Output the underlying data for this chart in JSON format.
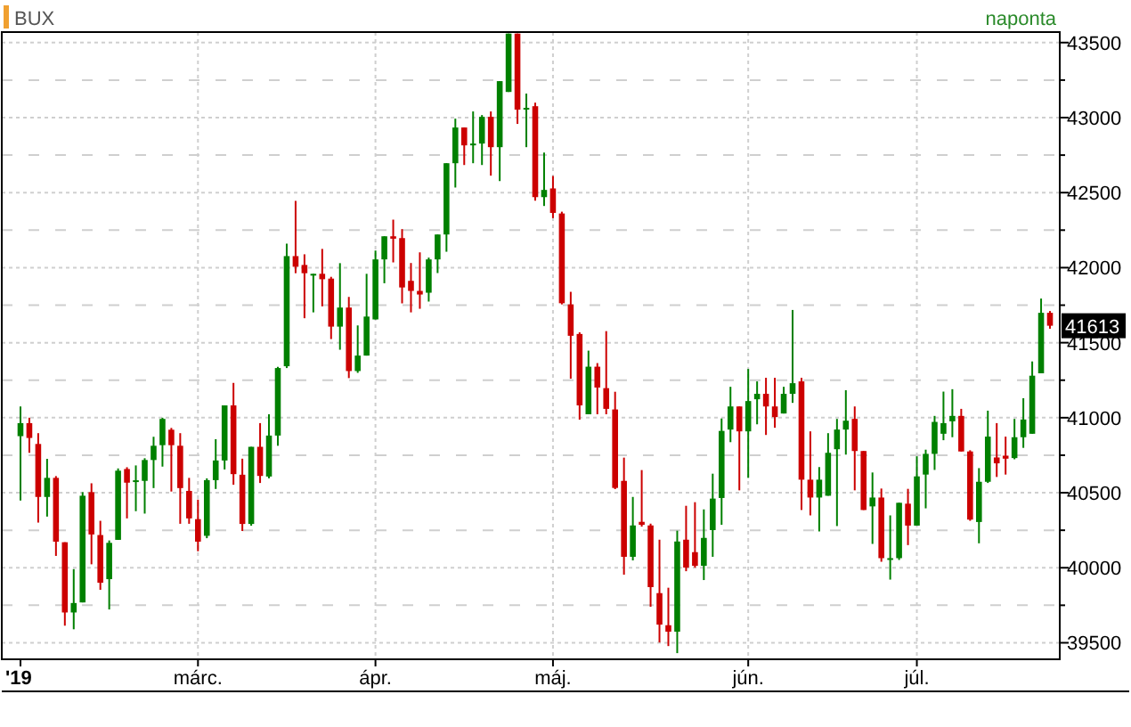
{
  "chart_data": {
    "type": "candlestick",
    "title": "BUX",
    "subtitle": "naponta",
    "categories": [
      "'19",
      null,
      null,
      null,
      null,
      null,
      null,
      null,
      null,
      null,
      null,
      null,
      null,
      null,
      null,
      null,
      null,
      null,
      null,
      null,
      "márc.",
      null,
      null,
      null,
      null,
      null,
      null,
      null,
      null,
      null,
      null,
      null,
      null,
      null,
      null,
      null,
      null,
      null,
      null,
      null,
      "ápr.",
      null,
      null,
      null,
      null,
      null,
      null,
      null,
      null,
      null,
      null,
      null,
      null,
      null,
      null,
      null,
      null,
      null,
      null,
      null,
      "máj.",
      null,
      null,
      null,
      null,
      null,
      null,
      null,
      null,
      null,
      null,
      null,
      null,
      null,
      null,
      null,
      null,
      null,
      null,
      null,
      null,
      null,
      "jún.",
      null,
      null,
      null,
      null,
      null,
      null,
      null,
      null,
      null,
      null,
      null,
      null,
      null,
      null,
      null,
      null,
      null,
      null,
      "júl.",
      null,
      null,
      null,
      null,
      null,
      null,
      null,
      null,
      null,
      null,
      null,
      null,
      null,
      null,
      null
    ],
    "ohlc": [
      [
        40877,
        41075,
        40448,
        40964
      ],
      [
        40964,
        41000,
        40766,
        40865
      ],
      [
        40825,
        40897,
        40301,
        40472
      ],
      [
        40472,
        40726,
        40341,
        40599
      ],
      [
        40599,
        40611,
        40079,
        40174
      ],
      [
        40170,
        40170,
        39614,
        39702
      ],
      [
        39702,
        39991,
        39590,
        39765
      ],
      [
        39769,
        40504,
        39769,
        40480
      ],
      [
        40504,
        40563,
        40023,
        40222
      ],
      [
        40218,
        40313,
        39853,
        39900
      ],
      [
        39924,
        40182,
        39722,
        40166
      ],
      [
        40186,
        40662,
        40186,
        40647
      ],
      [
        40658,
        40670,
        40329,
        40567
      ],
      [
        40575,
        40682,
        40377,
        40583
      ],
      [
        40579,
        40730,
        40361,
        40718
      ],
      [
        40718,
        40873,
        40531,
        40813
      ],
      [
        40817,
        41000,
        40674,
        40992
      ],
      [
        40920,
        40932,
        40508,
        40817
      ],
      [
        40813,
        40897,
        40293,
        40531
      ],
      [
        40512,
        40599,
        40293,
        40329
      ],
      [
        40324,
        40454,
        40110,
        40174
      ],
      [
        40213,
        40596,
        40197,
        40584
      ],
      [
        40584,
        40857,
        40525,
        40715
      ],
      [
        40715,
        41082,
        40655,
        41082
      ],
      [
        41082,
        41232,
        40553,
        40624
      ],
      [
        40620,
        40727,
        40245,
        40292
      ],
      [
        40292,
        40806,
        40280,
        40806
      ],
      [
        40806,
        40964,
        40565,
        40612
      ],
      [
        40608,
        41023,
        40596,
        40881
      ],
      [
        40881,
        41339,
        40813,
        41331
      ],
      [
        41343,
        42160,
        41331,
        42077
      ],
      [
        42077,
        42445,
        41963,
        42006
      ],
      [
        42018,
        42089,
        41663,
        41963
      ],
      [
        41951,
        41959,
        41702,
        41959
      ],
      [
        41959,
        42125,
        41742,
        41923
      ],
      [
        41927,
        41939,
        41524,
        41607
      ],
      [
        41607,
        42030,
        41453,
        41734
      ],
      [
        41734,
        41805,
        41264,
        41311
      ],
      [
        41311,
        41615,
        41299,
        41414
      ],
      [
        41414,
        41959,
        41414,
        41674
      ],
      [
        41655,
        42114,
        41655,
        42055
      ],
      [
        42055,
        42209,
        41896,
        42209
      ],
      [
        42209,
        42320,
        42035,
        42193
      ],
      [
        42197,
        42257,
        41762,
        41868
      ],
      [
        41912,
        42031,
        41702,
        41845
      ],
      [
        41845,
        42102,
        41726,
        41821
      ],
      [
        41833,
        42067,
        41774,
        42055
      ],
      [
        42055,
        42221,
        41964,
        42221
      ],
      [
        42221,
        42696,
        42106,
        42696
      ],
      [
        42696,
        42993,
        42534,
        42934
      ],
      [
        42934,
        42934,
        42684,
        42815
      ],
      [
        42819,
        43041,
        42696,
        42827
      ],
      [
        42827,
        43017,
        42684,
        43005
      ],
      [
        43005,
        43041,
        42613,
        42803
      ],
      [
        42803,
        43243,
        42577,
        43243
      ],
      [
        43171,
        43560,
        43171,
        43560
      ],
      [
        43560,
        43560,
        42958,
        43053
      ],
      [
        43057,
        43160,
        42803,
        43065
      ],
      [
        43076,
        43100,
        42447,
        42470
      ],
      [
        42470,
        42767,
        42411,
        42518
      ],
      [
        42528,
        42611,
        42330,
        42365
      ],
      [
        42361,
        42373,
        41755,
        41763
      ],
      [
        41755,
        41839,
        41260,
        41546
      ],
      [
        41558,
        41569,
        40987,
        41082
      ],
      [
        41023,
        41447,
        41023,
        41340
      ],
      [
        41340,
        41364,
        41023,
        41201
      ],
      [
        41197,
        41577,
        41023,
        41059
      ],
      [
        41055,
        41173,
        40524,
        40532
      ],
      [
        40579,
        40734,
        39954,
        40073
      ],
      [
        40073,
        40472,
        40049,
        40282
      ],
      [
        40306,
        40651,
        40274,
        40286
      ],
      [
        40282,
        40294,
        39740,
        39871
      ],
      [
        39831,
        40187,
        39502,
        39621
      ],
      [
        39617,
        39867,
        39478,
        39574
      ],
      [
        39574,
        40247,
        39431,
        40175
      ],
      [
        40187,
        40413,
        39977,
        40001
      ],
      [
        40104,
        40437,
        40001,
        40013
      ],
      [
        40013,
        40389,
        39918,
        40199
      ],
      [
        40251,
        40627,
        40073,
        40461
      ],
      [
        40465,
        40995,
        40286,
        40912
      ],
      [
        40921,
        41206,
        40837,
        41075
      ],
      [
        41075,
        41075,
        40516,
        40909
      ],
      [
        40909,
        41325,
        40599,
        41111
      ],
      [
        41123,
        41242,
        40956,
        41159
      ],
      [
        41159,
        41266,
        40885,
        41075
      ],
      [
        41075,
        41266,
        40933,
        41004
      ],
      [
        41028,
        41206,
        41028,
        41159
      ],
      [
        41159,
        41718,
        41099,
        41230
      ],
      [
        41242,
        41266,
        40385,
        40587
      ],
      [
        40587,
        40909,
        40349,
        40468
      ],
      [
        40468,
        40671,
        40242,
        40587
      ],
      [
        40480,
        40897,
        40480,
        40766
      ],
      [
        40790,
        40992,
        40278,
        40921
      ],
      [
        40921,
        41183,
        40754,
        40980
      ],
      [
        40992,
        41075,
        40516,
        40778
      ],
      [
        40778,
        40778,
        40385,
        40385
      ],
      [
        40409,
        40635,
        40159,
        40468
      ],
      [
        40468,
        40528,
        40040,
        40064
      ],
      [
        40056,
        40349,
        39921,
        40064
      ],
      [
        40064,
        40433,
        40052,
        40433
      ],
      [
        40427,
        40526,
        40151,
        40281
      ],
      [
        40281,
        40743,
        40281,
        40609
      ],
      [
        40621,
        40787,
        40396,
        40759
      ],
      [
        40759,
        41012,
        40652,
        40972
      ],
      [
        40893,
        41174,
        40850,
        40964
      ],
      [
        40976,
        41190,
        40870,
        41012
      ],
      [
        41012,
        41059,
        40775,
        40775
      ],
      [
        40775,
        40783,
        40313,
        40321
      ],
      [
        40305,
        40664,
        40163,
        40573
      ],
      [
        40573,
        41047,
        40565,
        40874
      ],
      [
        40735,
        40964,
        40605,
        40696
      ],
      [
        40747,
        40874,
        40621,
        40727
      ],
      [
        40731,
        40992,
        40723,
        40870
      ],
      [
        40870,
        41130,
        40799,
        40988
      ],
      [
        40893,
        41375,
        40893,
        41280
      ],
      [
        41296,
        41794,
        41296,
        41699
      ],
      [
        41699,
        41711,
        41593,
        41613
      ]
    ],
    "ylim": [
      39390,
      43570
    ],
    "yticks": [
      39500,
      {
        "value": 39750,
        "label": null
      },
      40000,
      {
        "value": 40250,
        "label": null
      },
      40500,
      {
        "value": 40750,
        "label": null
      },
      41000,
      {
        "value": 41250,
        "label": null
      },
      41500,
      {
        "value": 41750,
        "label": null
      },
      42000,
      {
        "value": 42250,
        "label": null
      },
      42500,
      {
        "value": 42750,
        "label": null
      },
      43000,
      {
        "value": 43250,
        "label": null
      },
      43500
    ],
    "grid": true,
    "annotations": [
      {
        "text": "41613",
        "y": 41613
      }
    ]
  }
}
